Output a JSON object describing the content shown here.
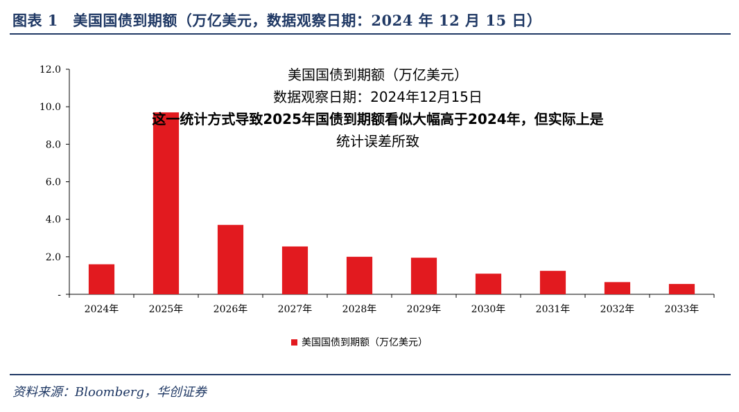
{
  "figure": {
    "header_title": "图表 1　美国国债到期额（万亿美元，数据观察日期：2024 年 12 月 15 日）",
    "source": "资料来源：Bloomberg，华创证券"
  },
  "overlay_text": {
    "line1": "美国国债到期额（万亿美元）",
    "line2": "数据观察日期：2024年12月15日",
    "line3": "这一统计方式导致2025年国债到期额看似大幅高于2024年，但实际上是",
    "line4": "统计误差所致"
  },
  "colors": {
    "bar": "#e21a1f",
    "header": "#1f3864",
    "axis": "#000000"
  },
  "chart_data": {
    "type": "bar",
    "categories": [
      "2024年",
      "2025年",
      "2026年",
      "2027年",
      "2028年",
      "2029年",
      "2030年",
      "2031年",
      "2032年",
      "2033年"
    ],
    "series": [
      {
        "name": "美国国债到期额（万亿美元）",
        "values": [
          1.6,
          9.7,
          3.7,
          2.55,
          2.0,
          1.95,
          1.1,
          1.25,
          0.65,
          0.55
        ]
      }
    ],
    "ylim": [
      0,
      12
    ],
    "yticks": [
      "-",
      "2.0",
      "4.0",
      "6.0",
      "8.0",
      "10.0",
      "12.0"
    ],
    "ytick_values": [
      0,
      2,
      4,
      6,
      8,
      10,
      12
    ],
    "grid": false,
    "legend_position": "bottom"
  }
}
